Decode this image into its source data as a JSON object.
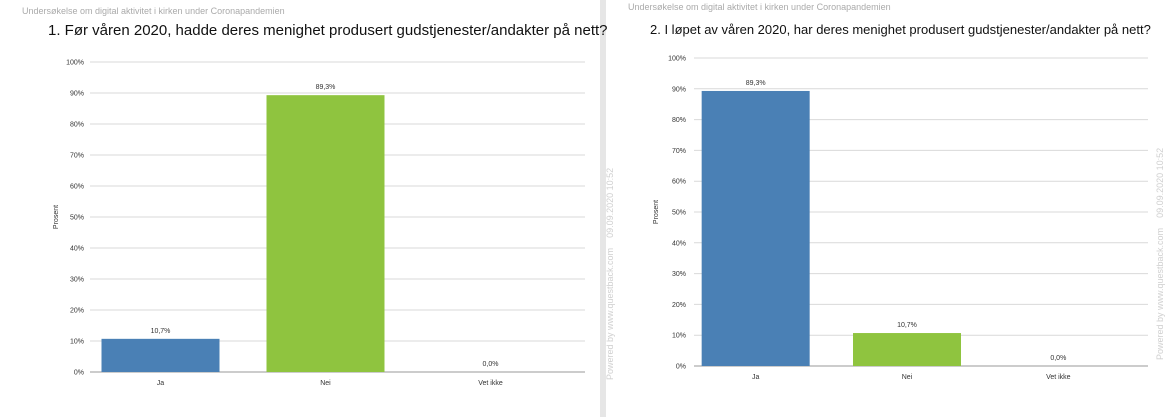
{
  "survey_header": "Undersøkelse om digital aktivitet i kirken under Coronapandemien",
  "watermark": "Powered by www.questback.com",
  "timestamp": "09.09.2020 10:52",
  "colors": {
    "ja": "#4a80b5",
    "nei": "#8fc43f",
    "vet_ikke": "#c9c9c9"
  },
  "chart_data": [
    {
      "type": "bar",
      "title": "1. Før våren 2020, hadde deres menighet produsert gudstjenester/andakter på nett?",
      "ylabel": "Prosent",
      "xlabel": "",
      "ylim": [
        0,
        100
      ],
      "yticks": [
        "0%",
        "10%",
        "20%",
        "30%",
        "40%",
        "50%",
        "60%",
        "70%",
        "80%",
        "90%",
        "100%"
      ],
      "categories": [
        "Ja",
        "Nei",
        "Vet ikke"
      ],
      "values": [
        10.7,
        89.3,
        0.0
      ],
      "data_labels": [
        "10,7%",
        "89,3%",
        "0,0%"
      ],
      "grid": true,
      "legend": "none"
    },
    {
      "type": "bar",
      "title": "2. I løpet av våren 2020, har deres menighet produsert gudstjenester/andakter på nett?",
      "ylabel": "Prosent",
      "xlabel": "",
      "ylim": [
        0,
        100
      ],
      "yticks": [
        "0%",
        "10%",
        "20%",
        "30%",
        "40%",
        "50%",
        "60%",
        "70%",
        "80%",
        "90%",
        "100%"
      ],
      "categories": [
        "Ja",
        "Nei",
        "Vet ikke"
      ],
      "values": [
        89.3,
        10.7,
        0.0
      ],
      "data_labels": [
        "89,3%",
        "10,7%",
        "0,0%"
      ],
      "grid": true,
      "legend": "none"
    }
  ]
}
